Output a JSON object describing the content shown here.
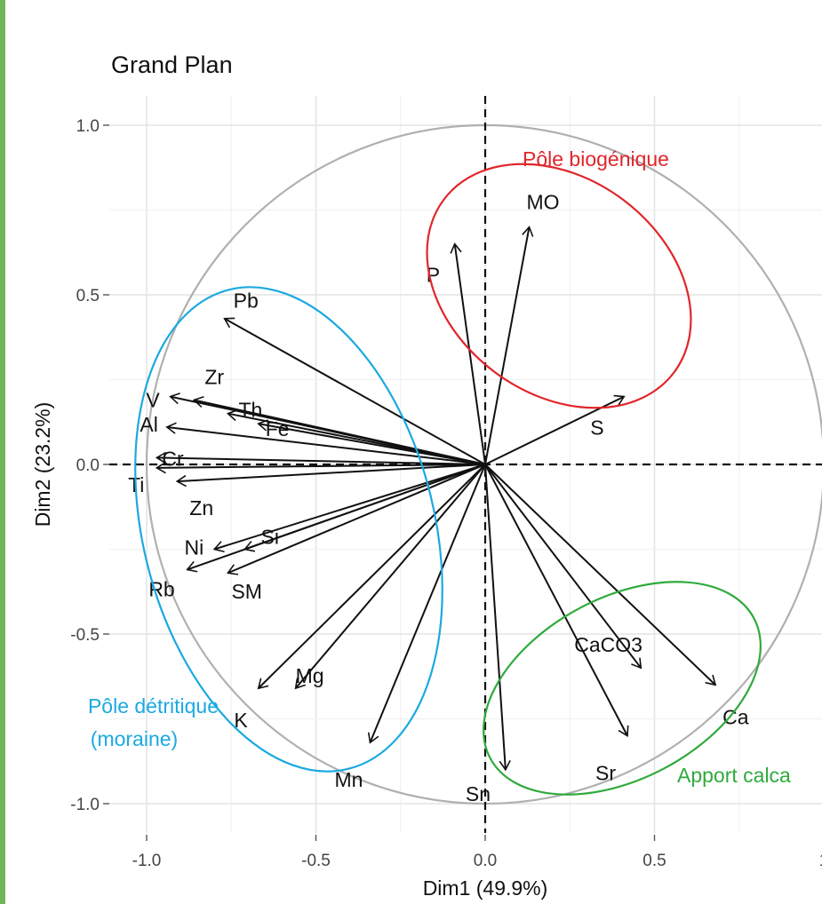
{
  "chart_data": {
    "type": "scatter",
    "title": "Grand Plan",
    "xlabel": "Dim1 (49.9%)",
    "ylabel": "Dim2 (23.2%)",
    "xlim": [
      -1.1,
      1.0
    ],
    "ylim": [
      -1.1,
      1.08
    ],
    "x_ticks": [
      "-1.0",
      "-0.5",
      "0.0",
      "0.5",
      "1"
    ],
    "y_ticks": [
      "1.0",
      "0.5",
      "0.0",
      "-0.5",
      "-1.0"
    ],
    "grid": true,
    "correlation_circle": true,
    "variables": [
      {
        "label": "Pb",
        "x": -0.77,
        "y": 0.43
      },
      {
        "label": "V",
        "x": -0.93,
        "y": 0.2
      },
      {
        "label": "Zr",
        "x": -0.86,
        "y": 0.19
      },
      {
        "label": "Th",
        "x": -0.76,
        "y": 0.15
      },
      {
        "label": "Al",
        "x": -0.94,
        "y": 0.11
      },
      {
        "label": "Fe",
        "x": -0.67,
        "y": 0.12
      },
      {
        "label": "Cr",
        "x": -0.97,
        "y": 0.02
      },
      {
        "label": "Ti",
        "x": -0.97,
        "y": -0.01
      },
      {
        "label": "Zn",
        "x": -0.91,
        "y": -0.05
      },
      {
        "label": "Si",
        "x": -0.71,
        "y": -0.25
      },
      {
        "label": "Ni",
        "x": -0.8,
        "y": -0.25
      },
      {
        "label": "SM",
        "x": -0.76,
        "y": -0.32
      },
      {
        "label": "Rb",
        "x": -0.88,
        "y": -0.31
      },
      {
        "label": "K",
        "x": -0.67,
        "y": -0.66
      },
      {
        "label": "Mg",
        "x": -0.56,
        "y": -0.66
      },
      {
        "label": "Mn",
        "x": -0.34,
        "y": -0.82
      },
      {
        "label": "Sn",
        "x": 0.06,
        "y": -0.9
      },
      {
        "label": "Sr",
        "x": 0.42,
        "y": -0.8
      },
      {
        "label": "CaCO3",
        "x": 0.46,
        "y": -0.6
      },
      {
        "label": "Ca",
        "x": 0.68,
        "y": -0.65
      },
      {
        "label": "S",
        "x": 0.41,
        "y": 0.2
      },
      {
        "label": "P",
        "x": -0.09,
        "y": 0.65
      },
      {
        "label": "MO",
        "x": 0.13,
        "y": 0.7
      }
    ],
    "groups": [
      {
        "label": "Pôle biogénique",
        "color": "#e0262b"
      },
      {
        "label": "Pôle détritique",
        "label2": "(moraine)",
        "color": "#1ba9e1"
      },
      {
        "label": "Apport calca",
        "color": "#2faa3c"
      }
    ]
  }
}
